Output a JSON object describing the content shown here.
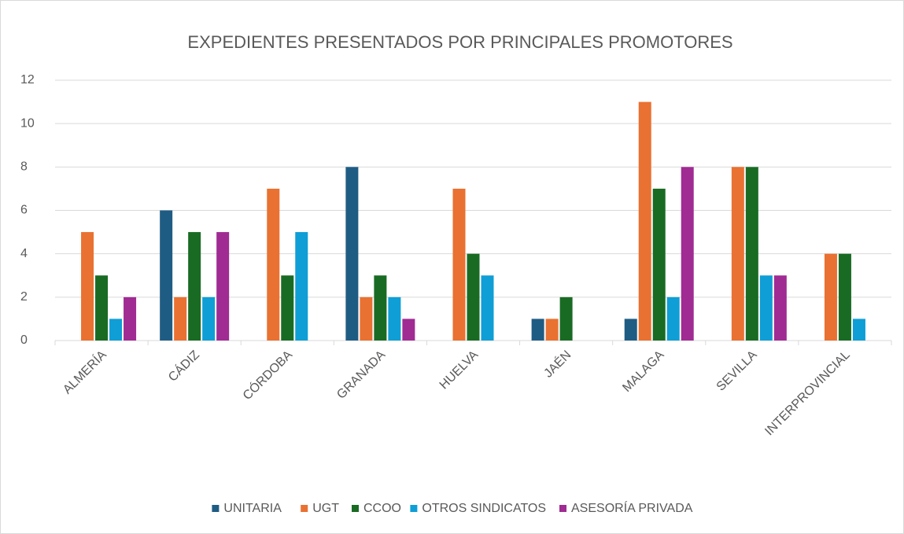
{
  "chart_data": {
    "type": "bar",
    "title": "EXPEDIENTES PRESENTADOS POR PRINCIPALES PROMOTORES",
    "categories": [
      "ALMERÍA",
      "CÁDIZ",
      "CÓRDOBA",
      "GRANADA",
      "HUELVA",
      "JAÉN",
      "MALAGA",
      "SEVILLA",
      "INTERPROVINCIAL"
    ],
    "series": [
      {
        "name": "UNITARIA",
        "color": "#1f5c84",
        "values": [
          0,
          6,
          0,
          8,
          0,
          1,
          1,
          0,
          0
        ]
      },
      {
        "name": "UGT",
        "color": "#e97132",
        "values": [
          5,
          2,
          7,
          2,
          7,
          1,
          11,
          8,
          4
        ]
      },
      {
        "name": "CCOO",
        "color": "#196b24",
        "values": [
          3,
          5,
          3,
          3,
          4,
          2,
          7,
          8,
          4
        ]
      },
      {
        "name": "OTROS SINDICATOS",
        "color": "#0f9ed5",
        "values": [
          1,
          2,
          5,
          2,
          3,
          0,
          2,
          3,
          1
        ]
      },
      {
        "name": "ASESORÍA PRIVADA",
        "color": "#a02b93",
        "values": [
          2,
          5,
          0,
          1,
          0,
          0,
          8,
          3,
          0
        ]
      }
    ],
    "ylim": [
      0,
      12
    ],
    "yticks": [
      0,
      2,
      4,
      6,
      8,
      10,
      12
    ],
    "grid": true,
    "legend": "bottom"
  }
}
